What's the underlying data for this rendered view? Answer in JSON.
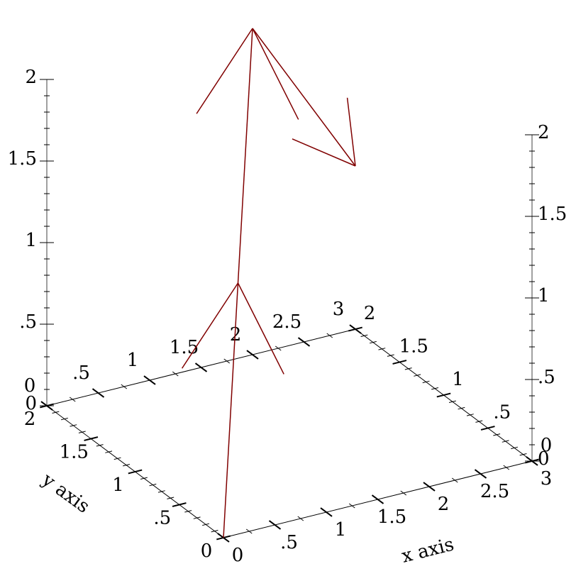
{
  "chart_data": {
    "type": "arrows3d",
    "points": [
      [
        0,
        0,
        0
      ],
      [
        1,
        1,
        1
      ],
      [
        2,
        2,
        2
      ],
      [
        3,
        2,
        1
      ]
    ],
    "xlabel": "x axis",
    "ylabel": "y axis",
    "zlabel": "",
    "xlim": [
      0,
      3
    ],
    "ylim": [
      0,
      2
    ],
    "zlim": [
      0,
      2
    ],
    "x_ticks": [
      {
        "v": 0,
        "label": "0"
      },
      {
        "v": 0.5,
        "label": ".5"
      },
      {
        "v": 1,
        "label": "1"
      },
      {
        "v": 1.5,
        "label": "1.5"
      },
      {
        "v": 2,
        "label": "2"
      },
      {
        "v": 2.5,
        "label": "2.5"
      },
      {
        "v": 3,
        "label": "3"
      }
    ],
    "y_ticks": [
      {
        "v": 0,
        "label": "0"
      },
      {
        "v": 0.5,
        "label": ".5"
      },
      {
        "v": 1,
        "label": "1"
      },
      {
        "v": 1.5,
        "label": "1.5"
      },
      {
        "v": 2,
        "label": "2"
      }
    ],
    "z_ticks": [
      {
        "v": 0,
        "label": "0"
      },
      {
        "v": 0.5,
        "label": ".5"
      },
      {
        "v": 1,
        "label": "1"
      },
      {
        "v": 1.5,
        "label": "1.5"
      },
      {
        "v": 2,
        "label": "2"
      }
    ],
    "arrow_color": "#800000",
    "axis_color": "#000000",
    "z_axis_color": "#808080",
    "grid": false
  }
}
